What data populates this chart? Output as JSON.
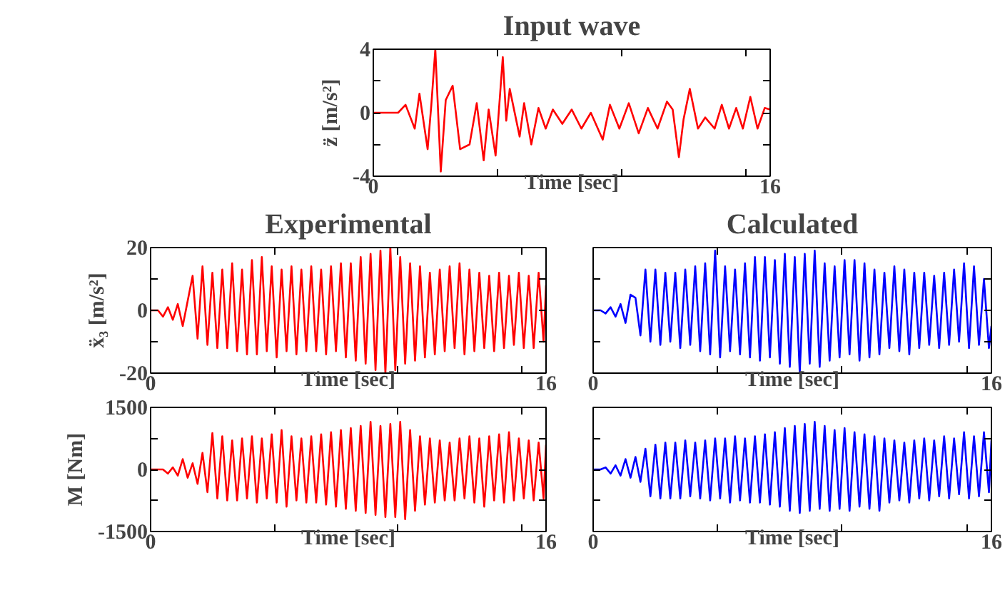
{
  "chart_data": [
    {
      "type": "line",
      "title": "Input wave",
      "xlabel": "Time [sec]",
      "ylabel": "z̈ [m/s²]",
      "xlim": [
        0,
        16
      ],
      "xticks": [
        0,
        {
          "value": 5,
          "label": null
        },
        {
          "value": 10,
          "label": null
        },
        {
          "value": 15,
          "label": null
        },
        16
      ],
      "ylim": [
        -4,
        4
      ],
      "yticks": [
        -4,
        {
          "value": -2,
          "label": null
        },
        0,
        {
          "value": 2,
          "label": null
        },
        4
      ],
      "x": [
        0,
        1.0,
        1.3,
        1.67,
        1.86,
        2.19,
        2.34,
        2.5,
        2.72,
        2.92,
        3.2,
        3.5,
        3.88,
        4.17,
        4.45,
        4.65,
        4.93,
        5.22,
        5.36,
        5.5,
        5.9,
        6.08,
        6.37,
        6.66,
        6.95,
        7.24,
        7.62,
        8.0,
        8.39,
        8.77,
        9.25,
        9.54,
        9.92,
        10.3,
        10.7,
        11.07,
        11.46,
        11.84,
        12.07,
        12.32,
        12.51,
        12.76,
        13.09,
        13.38,
        13.76,
        14.05,
        14.34,
        14.63,
        14.9,
        15.2,
        15.49,
        15.78,
        16
      ],
      "series": [
        {
          "color": "#ff0000",
          "values": [
            0,
            0,
            0.5,
            -1,
            1.2,
            -2.3,
            0.5,
            4,
            -3.7,
            0.8,
            1.7,
            -2.3,
            -2,
            0.6,
            -3,
            0.2,
            -2.7,
            3.5,
            -0.5,
            1.5,
            -1.5,
            0.6,
            -2,
            0.3,
            -1,
            0.2,
            -0.7,
            0.2,
            -1,
            0,
            -1.7,
            0.5,
            -1,
            0.6,
            -1.3,
            0.3,
            -1,
            0.7,
            0.2,
            -2.8,
            -0.4,
            1.5,
            -1,
            -0.3,
            -1,
            0.5,
            -1,
            0.3,
            -1,
            1,
            -1,
            0.3,
            0.2
          ]
        }
      ]
    },
    {
      "type": "line",
      "title": "Experimental",
      "xlabel": "Time [sec]",
      "ylabel": "ẍ₃ [m/s²]",
      "xlim": [
        0,
        16
      ],
      "xticks": [
        0,
        {
          "value": 5,
          "label": null
        },
        {
          "value": 10,
          "label": null
        },
        {
          "value": 15,
          "label": null
        },
        16
      ],
      "ylim": [
        -20,
        20
      ],
      "yticks": [
        -20,
        {
          "value": -10,
          "label": null
        },
        0,
        {
          "value": 10,
          "label": null
        },
        20
      ],
      "x": [
        0,
        0.3,
        0.5,
        0.7,
        0.9,
        1.1,
        1.3,
        1.5,
        1.7,
        1.9,
        2.1,
        2.3,
        2.5,
        2.7,
        2.9,
        3.1,
        3.3,
        3.5,
        3.7,
        3.9,
        4.1,
        4.3,
        4.5,
        4.7,
        4.9,
        5.1,
        5.3,
        5.5,
        5.7,
        5.9,
        6.1,
        6.3,
        6.5,
        6.7,
        6.9,
        7.1,
        7.3,
        7.5,
        7.7,
        7.9,
        8.1,
        8.3,
        8.5,
        8.7,
        8.9,
        9.1,
        9.3,
        9.5,
        9.7,
        9.9,
        10.1,
        10.3,
        10.5,
        10.7,
        10.9,
        11.1,
        11.3,
        11.5,
        11.7,
        11.9,
        12.1,
        12.3,
        12.5,
        12.7,
        12.9,
        13.1,
        13.3,
        13.5,
        13.7,
        13.9,
        14.1,
        14.3,
        14.5,
        14.7,
        14.9,
        15.1,
        15.3,
        15.5,
        15.7,
        15.9,
        16
      ],
      "series": [
        {
          "color": "#ff0000",
          "values": [
            0,
            0,
            -2,
            1,
            -3,
            2,
            -5,
            3,
            11,
            -9,
            14,
            -11,
            12,
            -12,
            13,
            -12,
            15,
            -13,
            13,
            -14,
            16,
            -14,
            17,
            -13,
            14,
            -15,
            13,
            -13,
            14,
            -14,
            13,
            -13,
            14,
            -13,
            13,
            -14,
            14,
            -13,
            15,
            -15,
            15,
            -16,
            17,
            -17,
            18,
            -19,
            19,
            -20,
            20,
            -19,
            17,
            -17,
            15,
            -16,
            14,
            -15,
            12,
            -14,
            13,
            -13,
            14,
            -12,
            15,
            -14,
            13,
            -13,
            12,
            -12,
            11,
            -13,
            12,
            -12,
            11,
            -11,
            12,
            -12,
            11,
            -12,
            12,
            -10,
            8
          ]
        }
      ]
    },
    {
      "type": "line",
      "title": "Calculated",
      "xlabel": "Time [sec]",
      "tick_labels": "x",
      "xlim": [
        0,
        16
      ],
      "xticks": [
        0,
        {
          "value": 5,
          "label": null
        },
        {
          "value": 10,
          "label": null
        },
        {
          "value": 15,
          "label": null
        },
        16
      ],
      "ylim": [
        -20,
        20
      ],
      "yticks": [
        {
          "value": -20,
          "label": null
        },
        {
          "value": -10,
          "label": null
        },
        {
          "value": 0,
          "label": null
        },
        {
          "value": 10,
          "label": null
        },
        {
          "value": 20,
          "label": null
        }
      ],
      "x": [
        0,
        0.3,
        0.5,
        0.7,
        0.9,
        1.1,
        1.3,
        1.5,
        1.7,
        1.9,
        2.1,
        2.3,
        2.5,
        2.7,
        2.9,
        3.1,
        3.3,
        3.5,
        3.7,
        3.9,
        4.1,
        4.3,
        4.5,
        4.7,
        4.9,
        5.1,
        5.3,
        5.5,
        5.7,
        5.9,
        6.1,
        6.3,
        6.5,
        6.7,
        6.9,
        7.1,
        7.3,
        7.5,
        7.7,
        7.9,
        8.1,
        8.3,
        8.5,
        8.7,
        8.9,
        9.1,
        9.3,
        9.5,
        9.7,
        9.9,
        10.1,
        10.3,
        10.5,
        10.7,
        10.9,
        11.1,
        11.3,
        11.5,
        11.7,
        11.9,
        12.1,
        12.3,
        12.5,
        12.7,
        12.9,
        13.1,
        13.3,
        13.5,
        13.7,
        13.9,
        14.1,
        14.3,
        14.5,
        14.7,
        14.9,
        15.1,
        15.3,
        15.5,
        15.7,
        15.9,
        16
      ],
      "series": [
        {
          "color": "#0000ff",
          "values": [
            0,
            0,
            -1,
            1,
            -2,
            2,
            -4,
            5,
            4,
            -8,
            13,
            -10,
            13,
            -11,
            12,
            -10,
            12,
            -12,
            13,
            -11,
            14,
            -13,
            15,
            -14,
            19,
            -15,
            14,
            -13,
            13,
            -14,
            15,
            -15,
            17,
            -16,
            17,
            -15,
            16,
            -17,
            18,
            -18,
            17,
            -20,
            18,
            -17,
            19,
            -18,
            15,
            -16,
            14,
            -15,
            16,
            -14,
            16,
            -16,
            15,
            -15,
            13,
            -14,
            12,
            -12,
            14,
            -13,
            13,
            -14,
            12,
            -12,
            12,
            -11,
            11,
            -12,
            12,
            -11,
            13,
            -10,
            15,
            -12,
            14,
            -11,
            10,
            -12,
            -5
          ]
        }
      ]
    },
    {
      "type": "line",
      "xlabel": "Time [sec]",
      "ylabel": "M [Nm]",
      "xlim": [
        0,
        16
      ],
      "xticks": [
        0,
        {
          "value": 5,
          "label": null
        },
        {
          "value": 10,
          "label": null
        },
        {
          "value": 15,
          "label": null
        },
        16
      ],
      "ylim": [
        -1500,
        1500
      ],
      "yticks": [
        -1500,
        {
          "value": -750,
          "label": null
        },
        0,
        {
          "value": 750,
          "label": null
        },
        1500
      ],
      "x": [
        0,
        0.3,
        0.5,
        0.7,
        0.9,
        1.1,
        1.3,
        1.5,
        1.7,
        1.9,
        2.1,
        2.3,
        2.5,
        2.7,
        2.9,
        3.1,
        3.3,
        3.5,
        3.7,
        3.9,
        4.1,
        4.3,
        4.5,
        4.7,
        4.9,
        5.1,
        5.3,
        5.5,
        5.7,
        5.9,
        6.1,
        6.3,
        6.5,
        6.7,
        6.9,
        7.1,
        7.3,
        7.5,
        7.7,
        7.9,
        8.1,
        8.3,
        8.5,
        8.7,
        8.9,
        9.1,
        9.3,
        9.5,
        9.7,
        9.9,
        10.1,
        10.3,
        10.5,
        10.7,
        10.9,
        11.1,
        11.3,
        11.5,
        11.7,
        11.9,
        12.1,
        12.3,
        12.5,
        12.7,
        12.9,
        13.1,
        13.3,
        13.5,
        13.7,
        13.9,
        14.1,
        14.3,
        14.5,
        14.7,
        14.9,
        15.1,
        15.3,
        15.5,
        15.7,
        15.9,
        16
      ],
      "series": [
        {
          "color": "#ff0000",
          "values": [
            0,
            0,
            0,
            -100,
            50,
            -150,
            250,
            -200,
            150,
            -350,
            400,
            -550,
            880,
            -700,
            800,
            -750,
            700,
            -750,
            750,
            -700,
            800,
            -800,
            750,
            -700,
            850,
            -800,
            950,
            -900,
            800,
            -750,
            750,
            -800,
            800,
            -800,
            850,
            -850,
            900,
            -900,
            950,
            -950,
            1000,
            -1000,
            1050,
            -1050,
            1150,
            -1100,
            1050,
            -1150,
            1100,
            -1150,
            1150,
            -1200,
            950,
            -1000,
            800,
            -850,
            750,
            -800,
            700,
            -750,
            650,
            -750,
            750,
            -700,
            800,
            -800,
            750,
            -900,
            800,
            -750,
            850,
            -800,
            900,
            -750,
            750,
            -700,
            700,
            -750,
            650,
            -700,
            600
          ]
        }
      ]
    },
    {
      "type": "line",
      "xlabel": "Time [sec]",
      "tick_labels": "x",
      "xlim": [
        0,
        16
      ],
      "xticks": [
        0,
        {
          "value": 5,
          "label": null
        },
        {
          "value": 10,
          "label": null
        },
        {
          "value": 15,
          "label": null
        },
        16
      ],
      "ylim": [
        -1500,
        1500
      ],
      "yticks": [
        {
          "value": -1500,
          "label": null
        },
        {
          "value": -750,
          "label": null
        },
        {
          "value": 0,
          "label": null
        },
        {
          "value": 750,
          "label": null
        },
        {
          "value": 1500,
          "label": null
        }
      ],
      "x": [
        0,
        0.3,
        0.5,
        0.7,
        0.9,
        1.1,
        1.3,
        1.5,
        1.7,
        1.9,
        2.1,
        2.3,
        2.5,
        2.7,
        2.9,
        3.1,
        3.3,
        3.5,
        3.7,
        3.9,
        4.1,
        4.3,
        4.5,
        4.7,
        4.9,
        5.1,
        5.3,
        5.5,
        5.7,
        5.9,
        6.1,
        6.3,
        6.5,
        6.7,
        6.9,
        7.1,
        7.3,
        7.5,
        7.7,
        7.9,
        8.1,
        8.3,
        8.5,
        8.7,
        8.9,
        9.1,
        9.3,
        9.5,
        9.7,
        9.9,
        10.1,
        10.3,
        10.5,
        10.7,
        10.9,
        11.1,
        11.3,
        11.5,
        11.7,
        11.9,
        12.1,
        12.3,
        12.5,
        12.7,
        12.9,
        13.1,
        13.3,
        13.5,
        13.7,
        13.9,
        14.1,
        14.3,
        14.5,
        14.7,
        14.9,
        15.1,
        15.3,
        15.5,
        15.7,
        15.9,
        16
      ],
      "series": [
        {
          "color": "#0000ff",
          "values": [
            0,
            0,
            50,
            -100,
            100,
            -150,
            250,
            -200,
            300,
            -300,
            500,
            -650,
            600,
            -700,
            650,
            -700,
            650,
            -700,
            700,
            -650,
            650,
            -700,
            700,
            -750,
            750,
            -700,
            750,
            -800,
            800,
            -750,
            750,
            -800,
            800,
            -800,
            850,
            -850,
            900,
            -900,
            1000,
            -1000,
            1050,
            -1050,
            1100,
            -1000,
            1150,
            -950,
            1050,
            -1000,
            950,
            -950,
            1000,
            -1000,
            900,
            -900,
            850,
            -950,
            800,
            -1000,
            750,
            -800,
            700,
            -750,
            650,
            -800,
            700,
            -700,
            750,
            -750,
            700,
            -650,
            800,
            -700,
            750,
            -600,
            900,
            -700,
            800,
            -650,
            900,
            -550,
            700
          ]
        }
      ]
    }
  ]
}
